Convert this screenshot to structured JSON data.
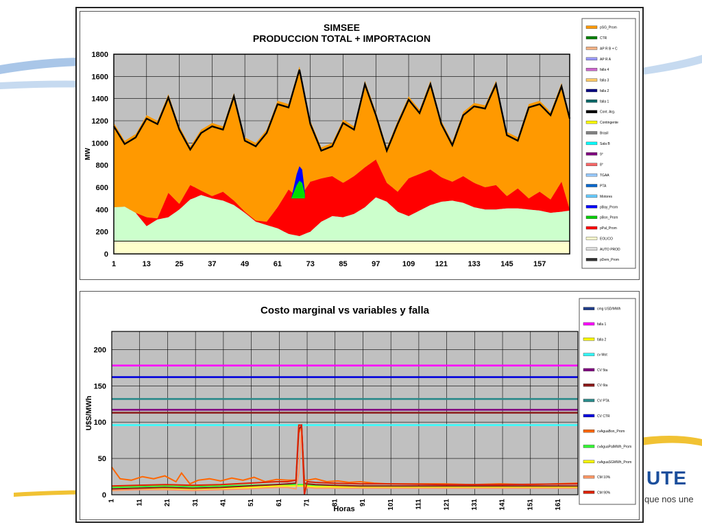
{
  "brand": {
    "logo_text": "UTE",
    "tagline": "que nos une"
  },
  "chart_data": [
    {
      "type": "area",
      "title": "SIMSEE",
      "subtitle": "PRODUCCION TOTAL + IMPORTACION",
      "ylabel": "MW",
      "xlabel": "",
      "ylim": [
        0,
        1800
      ],
      "yticks": [
        0,
        200,
        400,
        600,
        800,
        1000,
        1200,
        1400,
        1600,
        1800
      ],
      "xlim": [
        1,
        168
      ],
      "xticks": [
        1,
        13,
        25,
        37,
        49,
        61,
        73,
        85,
        97,
        109,
        121,
        133,
        145,
        157
      ],
      "grid": true,
      "legend_position": "right",
      "colors": {
        "eolico": "#ffffcc",
        "baseline": "#000000",
        "hydro_small": "#ccffcc",
        "pal": "#ff0000",
        "tg": "#00dd00",
        "pbay": "#0000ff",
        "total": "#ff9900",
        "cmg_line": "#000000",
        "plot_bg": "#c0c0c0"
      },
      "legend": [
        "pSG_Prom",
        "CTR",
        "AP R B + C",
        "AP R A",
        "falla 4",
        "falla 3",
        "falla 2",
        "falla 1",
        "Cont. Arg.",
        "Contingente",
        "Brasil",
        "Sala B",
        "9°",
        "8°",
        "TGAA",
        "PTA",
        "Motores",
        "pBay_Prom",
        "pBon_Prom",
        "pPal_Prom",
        "EOLICO",
        "AUTO PROD",
        "pDem_Prom"
      ],
      "series": [
        {
          "name": "EOLICO",
          "x": [
            1,
            168
          ],
          "values": [
            115,
            115
          ]
        },
        {
          "name": "pBon_Prom",
          "x": [
            1,
            5,
            9,
            13,
            17,
            21,
            25,
            29,
            33,
            37,
            41,
            45,
            49,
            53,
            57,
            61,
            65,
            69,
            73,
            77,
            81,
            85,
            89,
            93,
            97,
            101,
            105,
            109,
            113,
            117,
            121,
            125,
            129,
            133,
            137,
            141,
            145,
            149,
            153,
            157,
            161,
            165,
            168
          ],
          "values": [
            420,
            425,
            370,
            250,
            310,
            330,
            400,
            490,
            530,
            500,
            480,
            440,
            370,
            290,
            260,
            230,
            180,
            160,
            200,
            290,
            340,
            330,
            360,
            420,
            510,
            470,
            380,
            340,
            390,
            440,
            470,
            480,
            460,
            420,
            400,
            400,
            410,
            410,
            400,
            390,
            370,
            380,
            390
          ]
        },
        {
          "name": "pPal_Prom",
          "x": [
            1,
            5,
            9,
            13,
            17,
            21,
            25,
            29,
            33,
            37,
            41,
            45,
            49,
            53,
            57,
            61,
            65,
            69,
            73,
            77,
            81,
            85,
            89,
            93,
            97,
            101,
            105,
            109,
            113,
            117,
            121,
            125,
            129,
            133,
            137,
            141,
            145,
            149,
            153,
            157,
            161,
            165,
            168
          ],
          "values": [
            420,
            425,
            370,
            330,
            320,
            550,
            450,
            620,
            570,
            520,
            560,
            480,
            380,
            300,
            290,
            420,
            580,
            500,
            650,
            680,
            700,
            640,
            700,
            780,
            850,
            640,
            560,
            680,
            720,
            760,
            690,
            650,
            700,
            640,
            600,
            620,
            520,
            590,
            500,
            560,
            490,
            650,
            400
          ]
        },
        {
          "name": "pSG_Prom",
          "x": [
            1,
            5,
            9,
            13,
            17,
            21,
            25,
            29,
            33,
            37,
            41,
            45,
            49,
            53,
            57,
            61,
            65,
            69,
            73,
            77,
            81,
            85,
            89,
            93,
            97,
            101,
            105,
            109,
            113,
            117,
            121,
            125,
            129,
            133,
            137,
            141,
            145,
            149,
            153,
            157,
            161,
            165,
            168
          ],
          "values": [
            1180,
            1020,
            1080,
            1250,
            1200,
            1440,
            1150,
            970,
            1120,
            1180,
            1150,
            1450,
            1050,
            1000,
            1120,
            1380,
            1350,
            1690,
            1200,
            960,
            1000,
            1210,
            1150,
            1560,
            1280,
            960,
            1200,
            1420,
            1300,
            1560,
            1200,
            1010,
            1280,
            1360,
            1340,
            1560,
            1100,
            1050,
            1350,
            1380,
            1280,
            1540,
            1250
          ]
        }
      ]
    },
    {
      "type": "line",
      "title": "Costo marginal  vs variables y falla",
      "ylabel": "U$S/MWh",
      "xlabel": "Horas",
      "ylim": [
        0,
        225
      ],
      "yticks": [
        0,
        50,
        100,
        150,
        200
      ],
      "xlim": [
        1,
        168
      ],
      "xticks": [
        1,
        11,
        21,
        31,
        41,
        51,
        61,
        71,
        81,
        91,
        101,
        111,
        121,
        131,
        141,
        151,
        161
      ],
      "grid": true,
      "legend_position": "right",
      "legend": [
        "cmg USD/MWh",
        "falla 1",
        "falla 2",
        "cv Mot",
        "CV 5ta",
        "CV 6ta",
        "CV PTA",
        "CV CTR",
        "cvAguaBon_Prom",
        "cvAguaPalMWh_Prom",
        "cvAguaSGMWh_Prom",
        "CM 10%",
        "CM 90%"
      ],
      "series": [
        {
          "name": "falla 1",
          "color": "#ff00ff",
          "x": [
            1,
            168
          ],
          "values": [
            178,
            178
          ]
        },
        {
          "name": "CV CTR",
          "color": "#0000dd",
          "x": [
            1,
            168
          ],
          "values": [
            162,
            162
          ]
        },
        {
          "name": "CV PTA",
          "color": "#2a8a8a",
          "x": [
            1,
            168
          ],
          "values": [
            132,
            132
          ]
        },
        {
          "name": "CV 5ta",
          "color": "#800080",
          "x": [
            1,
            168
          ],
          "values": [
            117,
            117
          ]
        },
        {
          "name": "CV 6ta",
          "color": "#8b1a1a",
          "x": [
            1,
            168
          ],
          "values": [
            113,
            113
          ]
        },
        {
          "name": "cv Mot",
          "color": "#33ffff",
          "x": [
            1,
            168
          ],
          "values": [
            96,
            96
          ]
        },
        {
          "name": "cvAguaPalMWh_Prom",
          "color": "#33ff33",
          "x": [
            1,
            10,
            20,
            30,
            40,
            50,
            60,
            66,
            70,
            74,
            80,
            90,
            100,
            120,
            140,
            168
          ],
          "values": [
            10,
            11,
            12,
            11,
            12,
            13,
            14,
            14,
            14,
            13,
            13,
            12,
            12,
            11,
            11,
            11
          ]
        },
        {
          "name": "cvAguaSGMWh_Prom",
          "color": "#ffff00",
          "x": [
            1,
            10,
            20,
            30,
            40,
            50,
            60,
            66,
            70,
            74,
            80,
            90,
            100,
            120,
            140,
            168
          ],
          "values": [
            6,
            8,
            9,
            8,
            9,
            10,
            12,
            12,
            12,
            11,
            11,
            10,
            10,
            10,
            10,
            10
          ]
        },
        {
          "name": "cvAguaBon_Prom",
          "color": "#ff6600",
          "x": [
            1,
            4,
            8,
            12,
            16,
            20,
            24,
            26,
            29,
            32,
            36,
            40,
            44,
            48,
            52,
            56,
            60,
            64,
            67,
            68,
            69,
            70,
            71,
            74,
            78,
            82,
            86,
            90,
            95,
            100,
            110,
            120,
            130,
            140,
            150,
            160,
            168
          ],
          "values": [
            38,
            22,
            20,
            25,
            22,
            26,
            18,
            30,
            15,
            20,
            22,
            19,
            23,
            20,
            24,
            18,
            21,
            20,
            20,
            85,
            95,
            20,
            20,
            22,
            18,
            19,
            17,
            18,
            16,
            15,
            15,
            15,
            14,
            15,
            14,
            15,
            16
          ]
        },
        {
          "name": "cmg USD/MWh",
          "color": "#8b1a1a",
          "x": [
            1,
            10,
            20,
            30,
            40,
            50,
            60,
            64,
            67,
            68,
            69,
            70,
            71,
            74,
            80,
            90,
            100,
            120,
            140,
            168
          ],
          "values": [
            8,
            9,
            10,
            9,
            10,
            12,
            14,
            15,
            16,
            90,
            95,
            16,
            15,
            14,
            13,
            12,
            12,
            12,
            12,
            12
          ]
        },
        {
          "name": "CM 10%",
          "color": "#ff9966",
          "x": [
            1,
            10,
            20,
            30,
            40,
            50,
            60,
            64,
            67,
            68,
            69,
            70,
            71,
            74,
            80,
            90,
            100,
            120,
            140,
            168
          ],
          "values": [
            6,
            7,
            7,
            6,
            7,
            8,
            10,
            10,
            8,
            30,
            92,
            5,
            10,
            9,
            9,
            9,
            9,
            9,
            9,
            9
          ]
        },
        {
          "name": "CM 90%",
          "color": "#dd2200",
          "x": [
            1,
            10,
            20,
            30,
            40,
            50,
            60,
            64,
            67,
            68,
            69,
            70,
            71,
            74,
            80,
            90,
            100,
            120,
            140,
            168
          ],
          "values": [
            12,
            13,
            14,
            13,
            14,
            16,
            18,
            18,
            20,
            96,
            96,
            0,
            18,
            17,
            16,
            15,
            15,
            14,
            14,
            15
          ]
        }
      ]
    }
  ]
}
